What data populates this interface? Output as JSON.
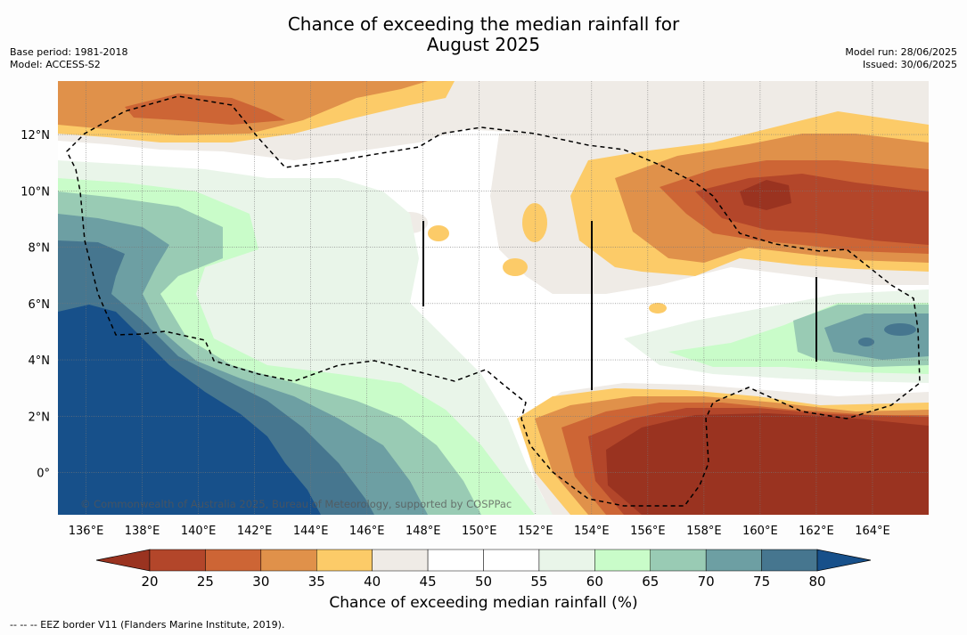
{
  "header": {
    "title_line1": "Chance of exceeding the median rainfall for",
    "title_line2": "August 2025",
    "base_period": "Base period: 1981-2018",
    "model": "Model: ACCESS-S2",
    "model_run": "Model run: 28/06/2025",
    "issued": "Issued: 30/06/2025"
  },
  "map": {
    "copyright": "© Commonwealth of Australia 2025, Bureau of Meteorology, supported by COSPPac",
    "lon_labels": [
      "136°E",
      "138°E",
      "140°E",
      "142°E",
      "144°E",
      "146°E",
      "148°E",
      "150°E",
      "152°E",
      "154°E",
      "156°E",
      "158°E",
      "160°E",
      "162°E",
      "164°E"
    ],
    "lon_values": [
      136,
      138,
      140,
      142,
      144,
      146,
      148,
      150,
      152,
      154,
      156,
      158,
      160,
      162,
      164
    ],
    "lat_labels": [
      "12°N",
      "10°N",
      "8°N",
      "6°N",
      "4°N",
      "2°N",
      "0°"
    ],
    "lat_values": [
      12,
      10,
      8,
      6,
      4,
      2,
      0
    ],
    "lon_range": [
      135,
      166
    ],
    "lat_range": [
      -1.5,
      13.9
    ],
    "eez_line_color": "#000000"
  },
  "colorbar": {
    "ticks": [
      "20",
      "25",
      "30",
      "35",
      "40",
      "45",
      "50",
      "55",
      "60",
      "65",
      "70",
      "75",
      "80"
    ],
    "colors": [
      "#9a3320",
      "#b3462a",
      "#cd6535",
      "#e0914a",
      "#fccb68",
      "#efebe6",
      "#ffffff",
      "#ffffff",
      "#e9f5e9",
      "#c9fcc9",
      "#99cbb4",
      "#6d9fa3",
      "#46768f",
      "#17508a"
    ],
    "title": "Chance of exceeding median rainfall (%)"
  },
  "footnote": "--  --  -- EEZ border V11 (Flanders Marine Institute, 2019)."
}
